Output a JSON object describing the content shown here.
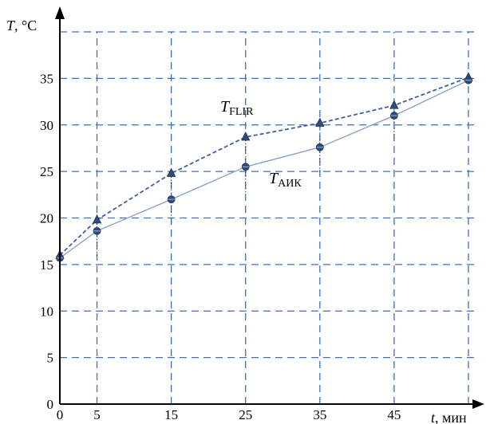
{
  "chart_data": {
    "type": "line",
    "ylabel_var": "T",
    "ylabel_unit": ", °C",
    "xlabel_var": "t",
    "xlabel_unit": ", мин",
    "x_ticks": [
      0,
      5,
      15,
      25,
      35,
      45
    ],
    "y_ticks": [
      0,
      5,
      10,
      15,
      20,
      25,
      30,
      35
    ],
    "xlim": [
      0,
      55
    ],
    "ylim": [
      0,
      40
    ],
    "grid": true,
    "series": [
      {
        "name_var": "T",
        "name_sub": "FLIR",
        "style": "dashed",
        "marker": "triangle",
        "color": "#3f5f9e",
        "x": [
          0,
          5,
          15,
          25,
          35,
          45,
          55
        ],
        "y": [
          16.0,
          19.8,
          24.8,
          28.7,
          30.2,
          32.1,
          35.1
        ]
      },
      {
        "name_var": "T",
        "name_sub": "АИК",
        "style": "solid",
        "marker": "circle",
        "color": "#8aa3c8",
        "x": [
          0,
          5,
          15,
          25,
          35,
          45,
          55
        ],
        "y": [
          15.7,
          18.6,
          22.0,
          25.5,
          27.6,
          31.0,
          34.8
        ]
      }
    ]
  }
}
